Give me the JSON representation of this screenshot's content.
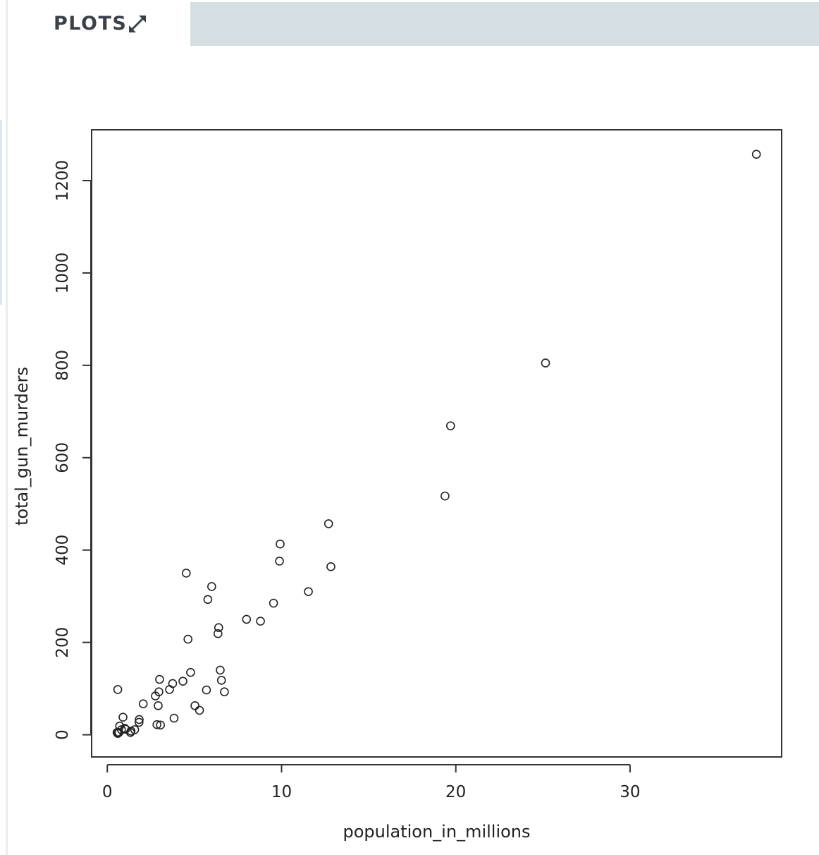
{
  "tab": {
    "label": "PLOTS",
    "expand_icon": "expand-arrows-icon"
  },
  "chart_data": {
    "type": "scatter",
    "title": "",
    "xlabel": "population_in_millions",
    "ylabel": "total_gun_murders",
    "xlim": [
      -0.9,
      38.7
    ],
    "ylim": [
      -48,
      1310
    ],
    "xticks": [
      0,
      10,
      20,
      30
    ],
    "yticks": [
      0,
      200,
      400,
      600,
      800,
      1000,
      1200
    ],
    "grid": false,
    "legend": "none",
    "marker": "open-circle",
    "x": [
      37.25,
      25.15,
      19.7,
      19.38,
      12.83,
      12.7,
      9.92,
      9.88,
      9.54,
      11.54,
      8.79,
      7.99,
      6.72,
      6.55,
      6.48,
      6.39,
      6.35,
      5.99,
      5.77,
      5.69,
      5.29,
      5.03,
      4.78,
      4.63,
      4.53,
      4.34,
      3.83,
      3.75,
      3.57,
      3.05,
      3.0,
      2.96,
      2.92,
      2.85,
      2.76,
      2.06,
      1.83,
      1.82,
      1.57,
      1.33,
      1.36,
      1.05,
      1.0,
      0.9,
      0.81,
      0.71,
      0.67,
      0.63,
      0.6,
      0.56,
      0.6
    ],
    "y": [
      1257,
      805,
      669,
      517,
      364,
      457,
      413,
      376,
      285,
      310,
      246,
      250,
      93,
      118,
      140,
      232,
      219,
      321,
      293,
      97,
      53,
      63,
      135,
      207,
      350,
      116,
      36,
      111,
      98,
      21,
      120,
      93,
      63,
      22,
      84,
      67,
      33,
      27,
      11,
      5,
      8,
      12,
      14,
      38,
      11,
      19,
      5,
      4,
      3,
      5,
      98
    ]
  }
}
